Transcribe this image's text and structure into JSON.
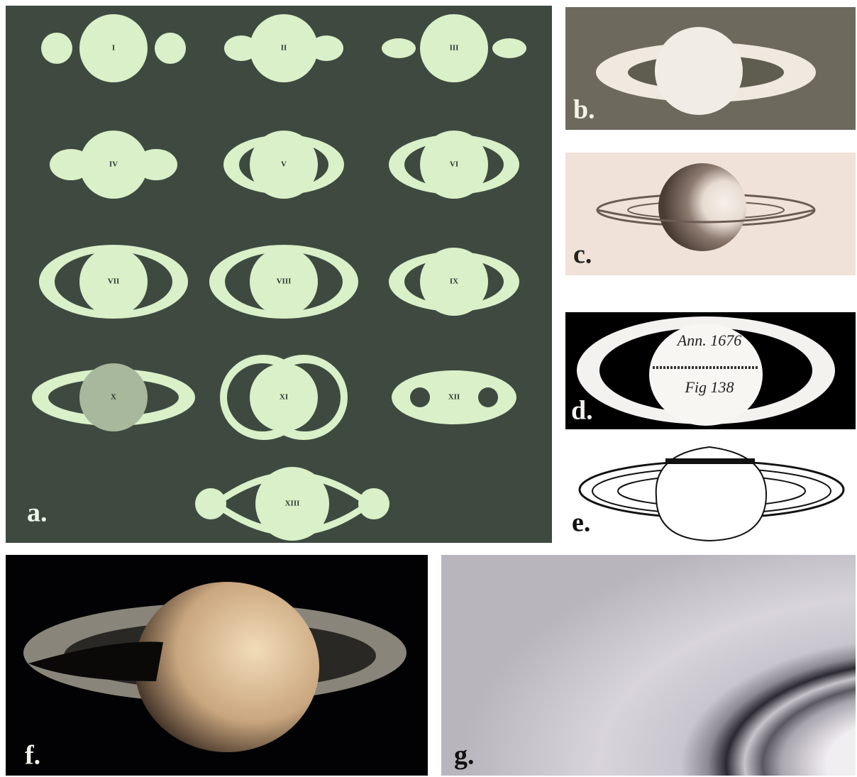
{
  "panels": [
    {
      "label": "a.",
      "figures": [
        "I",
        "II",
        "III",
        "IV",
        "V",
        "VI",
        "VII",
        "VIII",
        "IX",
        "X",
        "XI",
        "XII",
        "XIII"
      ]
    },
    {
      "label": "b."
    },
    {
      "label": "c."
    },
    {
      "label": "d.",
      "notes": [
        "Ann. 1676",
        "Fig 138"
      ]
    },
    {
      "label": "e."
    },
    {
      "label": "f."
    },
    {
      "label": "g."
    }
  ]
}
